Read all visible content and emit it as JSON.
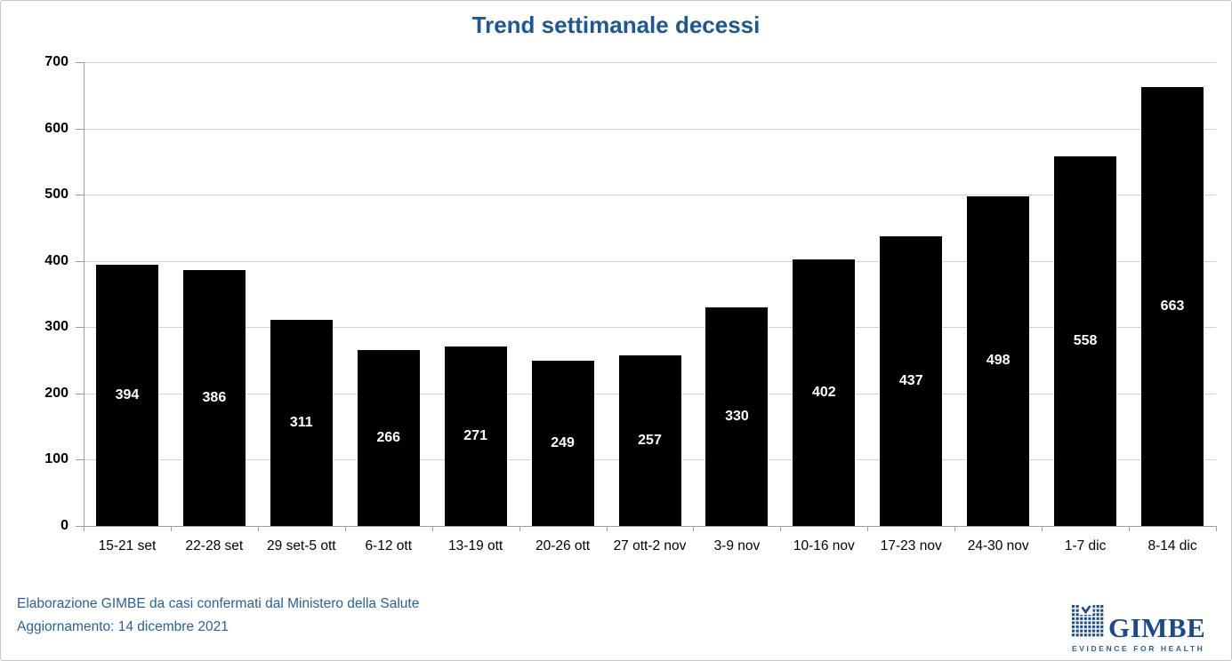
{
  "chart_data": {
    "type": "bar",
    "title": "Trend settimanale decessi",
    "categories": [
      "15-21 set",
      "22-28 set",
      "29 set-5 ott",
      "6-12 ott",
      "13-19 ott",
      "20-26 ott",
      "27 ott-2 nov",
      "3-9 nov",
      "10-16 nov",
      "17-23 nov",
      "24-30 nov",
      "1-7 dic",
      "8-14 dic"
    ],
    "values": [
      394,
      386,
      311,
      266,
      271,
      249,
      257,
      330,
      402,
      437,
      498,
      558,
      663
    ],
    "xlabel": "",
    "ylabel": "",
    "ylim": [
      0,
      700
    ],
    "ytick_step": 100,
    "grid": true,
    "legend": "none",
    "bar_color": "#000000",
    "value_label_color": "#ffffff"
  },
  "footer": {
    "line1": "Elaborazione GIMBE da casi confermati dal Ministero della Salute",
    "line2": "Aggiornamento: 14 dicembre 2021"
  },
  "logo": {
    "wordmark": "GIMBE",
    "tagline": "EVIDENCE FOR HEALTH"
  },
  "colors": {
    "title_blue": "#1d5796",
    "footer_blue": "#2c5f9e",
    "logo_navy": "#1b4a8c",
    "gridline_gray": "#d2d2d2",
    "axis_gray": "#9e9e9e"
  }
}
